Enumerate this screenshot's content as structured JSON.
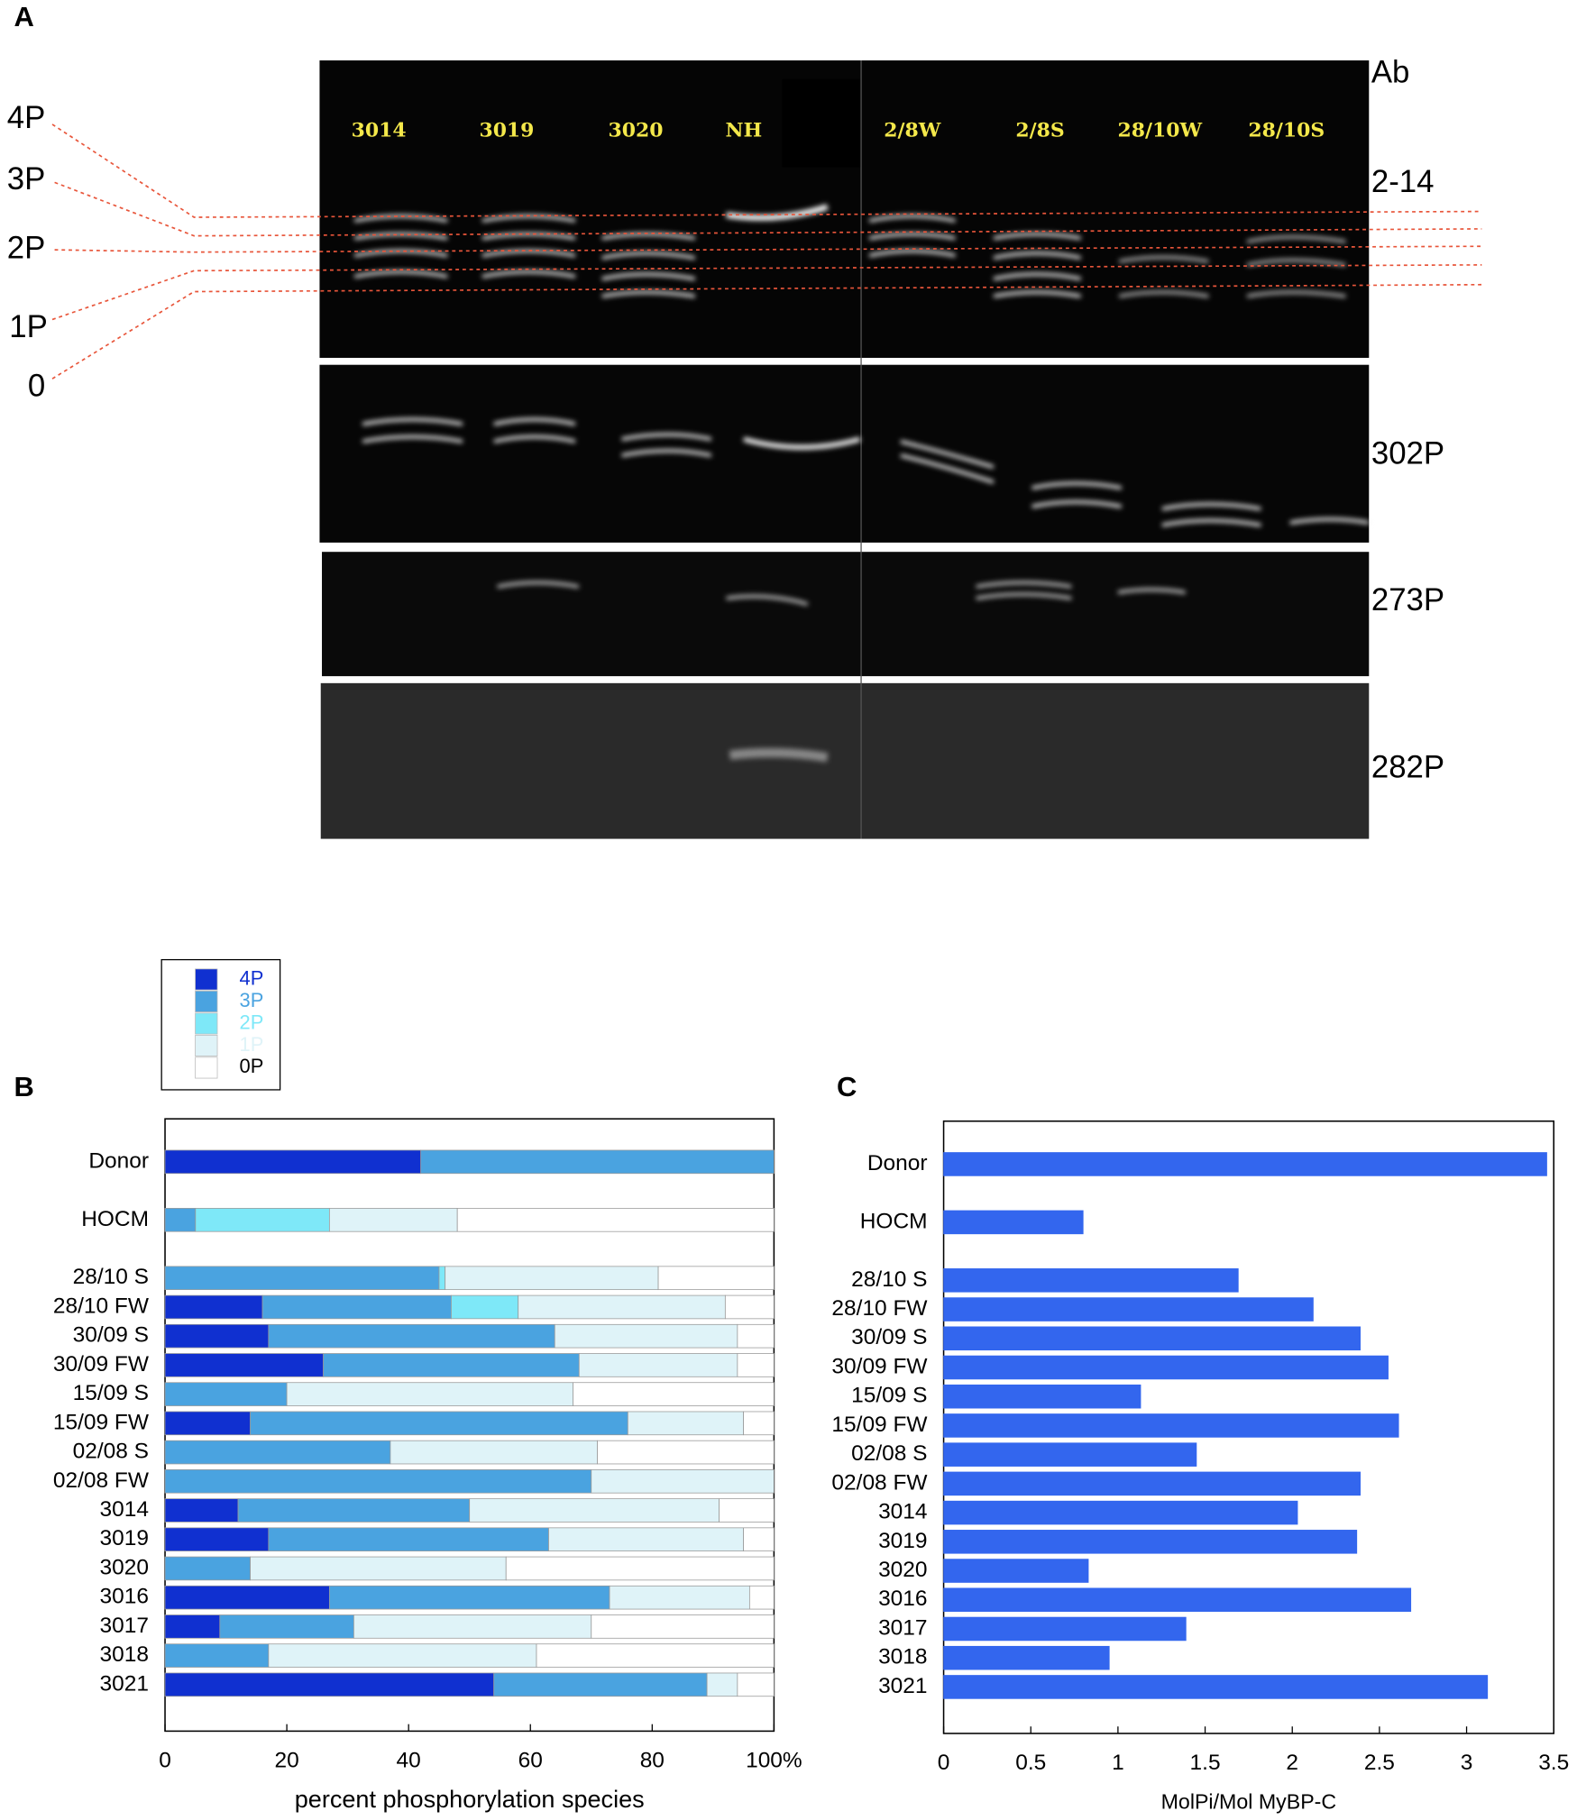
{
  "gel": {
    "panel_label": "A",
    "lanes": [
      "3014",
      "3019",
      "3020",
      "NH",
      "2/8W",
      "2/8S",
      "28/10W",
      "28/10S"
    ],
    "antibody_header": "Ab",
    "antibodies": [
      "2-14",
      "302P",
      "273P",
      "282P"
    ],
    "species": [
      "4P",
      "3P",
      "2P",
      "1P",
      "0"
    ]
  },
  "chart_data": [
    {
      "type": "bar",
      "panel_label": "B",
      "orientation": "horizontal",
      "stacked": true,
      "legend": true,
      "x_label": "percent phosphorylation species",
      "categories": [
        "Donor",
        null,
        "HOCM",
        null,
        "28/10 S",
        "28/10 FW",
        "30/09 S",
        "30/09 FW",
        "15/09 S",
        "15/09 FW",
        "02/08 S",
        "02/08 FW",
        "3014",
        "3019",
        "3020",
        "3016",
        "3017",
        "3018",
        "3021"
      ],
      "series": [
        {
          "name": "4P",
          "color": "#1030d0",
          "values": [
            42,
            null,
            0,
            null,
            0,
            16,
            17,
            26,
            0,
            14,
            0,
            0,
            12,
            17,
            0,
            27,
            9,
            0,
            54
          ]
        },
        {
          "name": "3P",
          "color": "#4aa3e0",
          "values": [
            58,
            null,
            5,
            null,
            45,
            31,
            47,
            42,
            20,
            62,
            37,
            70,
            38,
            46,
            14,
            46,
            22,
            17,
            35
          ]
        },
        {
          "name": "2P",
          "color": "#7ee8f8",
          "values": [
            0,
            null,
            22,
            null,
            1,
            11,
            0,
            0,
            0,
            0,
            0,
            0,
            0,
            0,
            0,
            0,
            0,
            0,
            0
          ]
        },
        {
          "name": "1P",
          "color": "#dff3f8",
          "values": [
            0,
            null,
            21,
            null,
            35,
            34,
            30,
            26,
            47,
            19,
            34,
            30,
            41,
            32,
            42,
            23,
            39,
            44,
            5
          ]
        },
        {
          "name": "0P",
          "color": "#ffffff",
          "values": [
            0,
            null,
            52,
            null,
            19,
            8,
            6,
            6,
            33,
            5,
            29,
            0,
            9,
            5,
            44,
            4,
            30,
            39,
            6
          ]
        }
      ],
      "xlim": [
        0,
        100
      ],
      "xticks": [
        0,
        20,
        40,
        60,
        80,
        {
          "value": 100,
          "label": "100%"
        }
      ]
    },
    {
      "type": "bar",
      "panel_label": "C",
      "orientation": "horizontal",
      "color": "#3366ee",
      "x_label": "MolPi/Mol MyBP-C",
      "categories": [
        "Donor",
        null,
        "HOCM",
        null,
        "28/10 S",
        "28/10 FW",
        "30/09 S",
        "30/09 FW",
        "15/09 S",
        "15/09 FW",
        "02/08 S",
        "02/08 FW",
        "3014",
        "3019",
        "3020",
        "3016",
        "3017",
        "3018",
        "3021"
      ],
      "values": [
        3.46,
        null,
        0.8,
        null,
        1.69,
        2.12,
        2.39,
        2.55,
        1.13,
        2.61,
        1.45,
        2.39,
        2.03,
        2.37,
        0.83,
        2.68,
        1.39,
        0.95,
        3.12
      ],
      "xlim": [
        0,
        3.5
      ],
      "xticks": [
        0,
        0.5,
        1,
        1.5,
        2,
        2.5,
        3,
        3.5
      ]
    }
  ]
}
